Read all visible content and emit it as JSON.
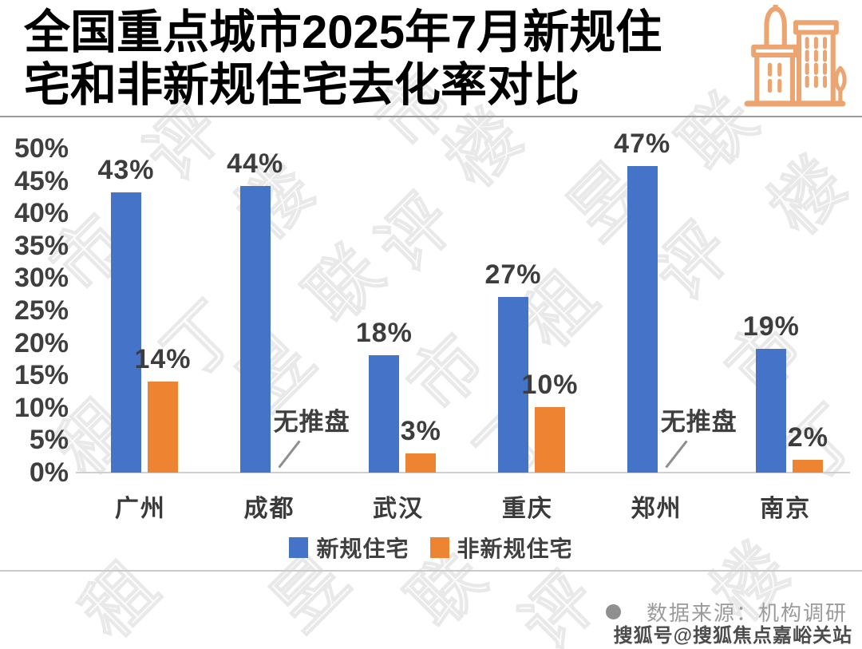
{
  "title": {
    "line1": "全国重点城市2025年7月新规住",
    "line2": "宅和非新规住宅去化率对比"
  },
  "chart_data": {
    "type": "bar",
    "title": "全国重点城市2025年7月新规住宅和非新规住宅去化率对比",
    "categories": [
      "广州",
      "成都",
      "武汉",
      "重庆",
      "郑州",
      "南京"
    ],
    "series": [
      {
        "name": "新规住宅",
        "color": "#4573C8",
        "values": [
          43,
          44,
          18,
          27,
          47,
          19
        ],
        "labels": [
          "43%",
          "44%",
          "18%",
          "27%",
          "47%",
          "19%"
        ]
      },
      {
        "name": "非新规住宅",
        "color": "#EE8332",
        "values": [
          14,
          null,
          3,
          10,
          null,
          2
        ],
        "labels": [
          "14%",
          "无推盘",
          "3%",
          "10%",
          "无推盘",
          "2%"
        ]
      }
    ],
    "no_data_label": "无推盘",
    "ylim": [
      0,
      50
    ],
    "yticks": [
      "50%",
      "45%",
      "40%",
      "35%",
      "30%",
      "25%",
      "20%",
      "15%",
      "10%",
      "5%",
      "0%"
    ],
    "grid": false,
    "legend_position": "bottom"
  },
  "legend": [
    {
      "label": "新规住宅",
      "color": "#4573C8"
    },
    {
      "label": "非新规住宅",
      "color": "#EE8332"
    }
  ],
  "footer": {
    "bullet": "●",
    "source_label": "数据来源：机构调研",
    "sohu_watermark": "搜狐号@搜狐焦点嘉峪关站"
  },
  "colors": {
    "bar_blue": "#4573C8",
    "bar_orange": "#EE8332",
    "icon_orange": "#ECA470",
    "axis_text": "#3f3f3f",
    "title_text": "#000000",
    "source_text": "#9b9b9b"
  },
  "watermarks": {
    "chars": [
      "评",
      "楼",
      "市",
      "丁",
      "租",
      "昱",
      "联"
    ]
  }
}
